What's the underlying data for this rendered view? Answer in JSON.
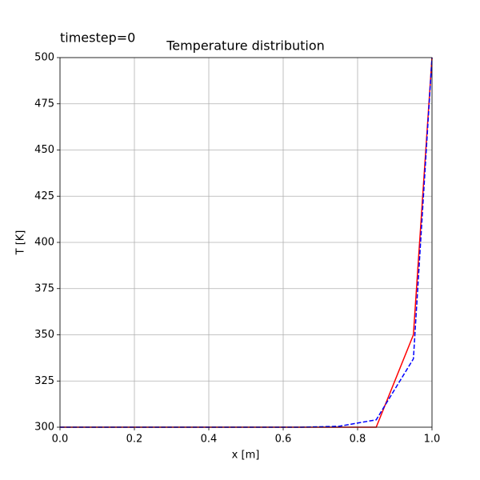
{
  "chart_data": {
    "type": "line",
    "annotation": "timestep=0",
    "title": "Temperature distribution",
    "x_label": "x [m]",
    "y_label": "T [K]",
    "x": [
      0,
      0.05,
      0.15,
      0.25,
      0.35,
      0.45,
      0.55,
      0.65,
      0.75,
      0.85,
      0.95,
      1.0
    ],
    "series": [
      {
        "color": "#ff0000",
        "dash": "solid",
        "values": [
          300,
          300,
          300,
          300,
          300,
          300,
          300,
          300,
          300,
          300,
          350,
          500
        ]
      },
      {
        "color": "#0000ff",
        "dash": "dashed",
        "values": [
          300,
          300,
          300,
          300,
          300,
          300,
          300,
          300,
          300.5,
          304,
          337,
          500
        ]
      }
    ],
    "xlim": [
      0,
      1.0
    ],
    "xticks": [
      {
        "value": 0,
        "label": "0.0"
      },
      0.2,
      0.4,
      0.6,
      0.8,
      {
        "value": 1.0,
        "label": "1.0"
      }
    ],
    "ylim": [
      300,
      500
    ],
    "yticks": [
      300,
      325,
      350,
      375,
      400,
      425,
      450,
      475,
      500
    ],
    "grid": true
  }
}
